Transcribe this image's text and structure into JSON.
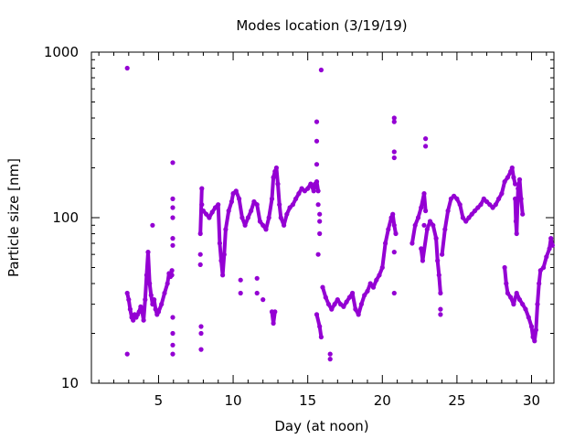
{
  "chart_data": {
    "type": "scatter",
    "title": "Modes location (3/19/19)",
    "xlabel": "Day (at noon)",
    "ylabel": "Particle size [nm]",
    "xlim": [
      0.5,
      31.5
    ],
    "ylim": [
      10,
      1000
    ],
    "y_scale": "log",
    "x_ticks": [
      5,
      10,
      15,
      20,
      25,
      30
    ],
    "x_tick_labels": [
      "5",
      "10",
      "15",
      "20",
      "25",
      "30"
    ],
    "y_ticks": [
      10,
      100,
      1000
    ],
    "y_tick_labels": [
      "10",
      "100",
      "1000"
    ],
    "grid": false,
    "legend": "none",
    "series_color": "#9400D3",
    "series": [
      {
        "points": [
          [
            2.9,
            800
          ],
          [
            2.9,
            15
          ],
          [
            2.9,
            35
          ],
          [
            3.0,
            32
          ],
          [
            3.1,
            28
          ],
          [
            3.2,
            25
          ],
          [
            3.3,
            24
          ],
          [
            3.4,
            26
          ],
          [
            3.5,
            25
          ],
          [
            3.6,
            26
          ],
          [
            3.7,
            27
          ],
          [
            3.8,
            29
          ],
          [
            3.9,
            27
          ],
          [
            4.0,
            24
          ],
          [
            4.1,
            32
          ],
          [
            4.2,
            45
          ],
          [
            4.3,
            62
          ],
          [
            4.4,
            40
          ],
          [
            4.5,
            34
          ],
          [
            4.6,
            30
          ],
          [
            4.7,
            32
          ],
          [
            4.8,
            28
          ],
          [
            4.9,
            26
          ],
          [
            5.0,
            27
          ],
          [
            5.2,
            30
          ],
          [
            5.4,
            35
          ],
          [
            5.6,
            40
          ],
          [
            5.7,
            46
          ],
          [
            5.8,
            44
          ],
          [
            5.9,
            48
          ],
          [
            5.9,
            45
          ],
          [
            5.95,
            17
          ],
          [
            5.95,
            15
          ],
          [
            5.95,
            20
          ],
          [
            5.95,
            25
          ],
          [
            5.95,
            68
          ],
          [
            5.95,
            75
          ],
          [
            5.95,
            100
          ],
          [
            5.95,
            115
          ],
          [
            5.95,
            130
          ],
          [
            5.95,
            215
          ],
          [
            4.6,
            90
          ],
          [
            7.8,
            52
          ],
          [
            7.8,
            60
          ],
          [
            7.8,
            80
          ],
          [
            7.9,
            150
          ],
          [
            7.9,
            120
          ],
          [
            7.85,
            22
          ],
          [
            7.85,
            20
          ],
          [
            7.85,
            16
          ],
          [
            8.0,
            110
          ],
          [
            8.2,
            105
          ],
          [
            8.4,
            100
          ],
          [
            8.6,
            108
          ],
          [
            8.8,
            115
          ],
          [
            9.0,
            120
          ],
          [
            9.1,
            70
          ],
          [
            9.2,
            55
          ],
          [
            9.3,
            45
          ],
          [
            9.4,
            60
          ],
          [
            9.5,
            85
          ],
          [
            9.7,
            110
          ],
          [
            9.9,
            125
          ],
          [
            10.0,
            140
          ],
          [
            10.2,
            145
          ],
          [
            10.4,
            130
          ],
          [
            10.6,
            100
          ],
          [
            10.8,
            90
          ],
          [
            11.0,
            100
          ],
          [
            11.2,
            110
          ],
          [
            11.4,
            125
          ],
          [
            11.6,
            120
          ],
          [
            11.8,
            95
          ],
          [
            12.0,
            90
          ],
          [
            12.2,
            85
          ],
          [
            12.4,
            100
          ],
          [
            12.6,
            130
          ],
          [
            12.7,
            175
          ],
          [
            12.8,
            190
          ],
          [
            12.9,
            200
          ],
          [
            13.0,
            160
          ],
          [
            13.1,
            120
          ],
          [
            13.2,
            100
          ],
          [
            13.4,
            90
          ],
          [
            13.6,
            105
          ],
          [
            13.8,
            115
          ],
          [
            14.0,
            120
          ],
          [
            14.2,
            130
          ],
          [
            14.4,
            140
          ],
          [
            14.6,
            150
          ],
          [
            14.8,
            145
          ],
          [
            15.0,
            150
          ],
          [
            15.2,
            160
          ],
          [
            15.4,
            145
          ],
          [
            15.5,
            160
          ],
          [
            15.6,
            165
          ],
          [
            15.7,
            145
          ],
          [
            15.7,
            120
          ],
          [
            15.6,
            380
          ],
          [
            15.6,
            290
          ],
          [
            15.6,
            210
          ],
          [
            15.9,
            780
          ],
          [
            15.8,
            105
          ],
          [
            15.8,
            95
          ],
          [
            15.8,
            80
          ],
          [
            15.7,
            60
          ],
          [
            15.6,
            26
          ],
          [
            15.8,
            22
          ],
          [
            15.9,
            19
          ],
          [
            10.5,
            42
          ],
          [
            10.5,
            35
          ],
          [
            11.6,
            43
          ],
          [
            11.6,
            35
          ],
          [
            12.0,
            32
          ],
          [
            12.6,
            27
          ],
          [
            12.7,
            23
          ],
          [
            12.8,
            27
          ],
          [
            16.0,
            38
          ],
          [
            16.2,
            33
          ],
          [
            16.4,
            30
          ],
          [
            16.6,
            28
          ],
          [
            16.8,
            30
          ],
          [
            17.0,
            32
          ],
          [
            17.2,
            30
          ],
          [
            17.4,
            29
          ],
          [
            17.6,
            31
          ],
          [
            17.8,
            33
          ],
          [
            18.0,
            35
          ],
          [
            18.2,
            28
          ],
          [
            18.4,
            26
          ],
          [
            18.6,
            30
          ],
          [
            18.8,
            34
          ],
          [
            19.0,
            36
          ],
          [
            19.2,
            40
          ],
          [
            19.4,
            38
          ],
          [
            19.6,
            42
          ],
          [
            19.8,
            45
          ],
          [
            20.0,
            50
          ],
          [
            20.2,
            70
          ],
          [
            20.4,
            85
          ],
          [
            20.6,
            100
          ],
          [
            20.7,
            105
          ],
          [
            20.8,
            90
          ],
          [
            20.9,
            80
          ],
          [
            16.5,
            15
          ],
          [
            16.5,
            14
          ],
          [
            20.8,
            400
          ],
          [
            20.8,
            380
          ],
          [
            20.8,
            250
          ],
          [
            20.8,
            230
          ],
          [
            20.8,
            62
          ],
          [
            20.8,
            35
          ],
          [
            22.0,
            70
          ],
          [
            22.2,
            90
          ],
          [
            22.4,
            100
          ],
          [
            22.6,
            115
          ],
          [
            22.8,
            140
          ],
          [
            22.9,
            110
          ],
          [
            22.8,
            90
          ],
          [
            22.9,
            300
          ],
          [
            22.9,
            270
          ],
          [
            22.6,
            65
          ],
          [
            22.7,
            55
          ],
          [
            23.0,
            85
          ],
          [
            23.2,
            95
          ],
          [
            23.4,
            90
          ],
          [
            23.6,
            75
          ],
          [
            23.7,
            55
          ],
          [
            23.8,
            45
          ],
          [
            23.9,
            35
          ],
          [
            23.9,
            28
          ],
          [
            23.9,
            26
          ],
          [
            24.0,
            60
          ],
          [
            24.2,
            85
          ],
          [
            24.4,
            110
          ],
          [
            24.6,
            130
          ],
          [
            24.8,
            135
          ],
          [
            25.0,
            130
          ],
          [
            25.2,
            120
          ],
          [
            25.4,
            100
          ],
          [
            25.6,
            95
          ],
          [
            25.8,
            100
          ],
          [
            26.0,
            105
          ],
          [
            26.2,
            110
          ],
          [
            26.4,
            115
          ],
          [
            26.6,
            120
          ],
          [
            26.8,
            130
          ],
          [
            27.0,
            125
          ],
          [
            27.2,
            120
          ],
          [
            27.4,
            115
          ],
          [
            27.6,
            120
          ],
          [
            27.8,
            130
          ],
          [
            28.0,
            140
          ],
          [
            28.2,
            165
          ],
          [
            28.4,
            175
          ],
          [
            28.6,
            190
          ],
          [
            28.7,
            200
          ],
          [
            28.8,
            175
          ],
          [
            28.9,
            160
          ],
          [
            28.9,
            130
          ],
          [
            28.95,
            95
          ],
          [
            29.0,
            80
          ],
          [
            29.1,
            150
          ],
          [
            29.2,
            170
          ],
          [
            29.3,
            130
          ],
          [
            29.4,
            105
          ],
          [
            28.2,
            50
          ],
          [
            28.3,
            40
          ],
          [
            28.4,
            35
          ],
          [
            28.6,
            33
          ],
          [
            28.8,
            30
          ],
          [
            29.0,
            35
          ],
          [
            29.2,
            32
          ],
          [
            29.4,
            30
          ],
          [
            29.6,
            28
          ],
          [
            29.8,
            25
          ],
          [
            30.0,
            22
          ],
          [
            30.1,
            19
          ],
          [
            30.2,
            18
          ],
          [
            30.3,
            21
          ],
          [
            30.4,
            30
          ],
          [
            30.5,
            40
          ],
          [
            30.6,
            48
          ],
          [
            30.8,
            50
          ],
          [
            31.0,
            58
          ],
          [
            31.2,
            65
          ],
          [
            31.3,
            75
          ],
          [
            31.4,
            68
          ]
        ]
      }
    ]
  }
}
